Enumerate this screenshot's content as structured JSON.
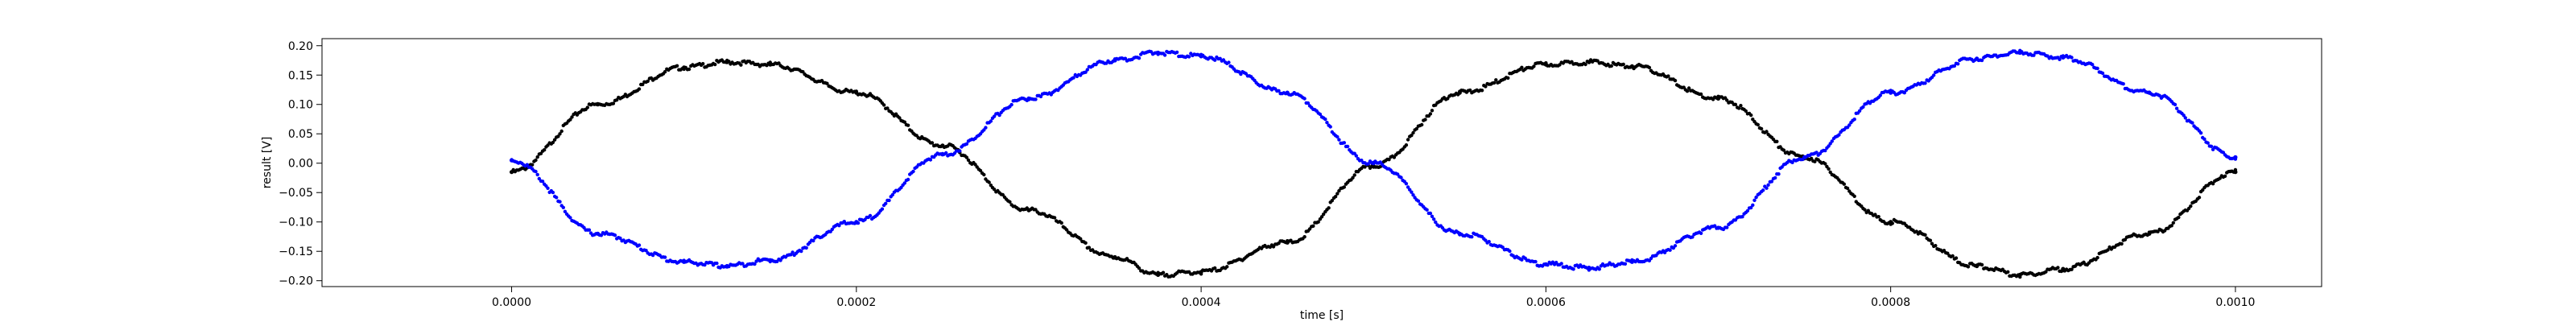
{
  "chart_data": {
    "type": "scatter",
    "title": "",
    "xlabel": "time [s]",
    "ylabel": "result [V]",
    "xlim": [
      -0.00011,
      0.00105
    ],
    "ylim": [
      -0.21,
      0.212
    ],
    "xticks": [
      0.0,
      0.0002,
      0.0004,
      0.0006,
      0.0008,
      0.001
    ],
    "xtick_labels": [
      "0.0000",
      "0.0002",
      "0.0004",
      "0.0006",
      "0.0008",
      "0.0010"
    ],
    "yticks": [
      -0.2,
      -0.15,
      -0.1,
      -0.05,
      0.0,
      0.05,
      0.1,
      0.15,
      0.2
    ],
    "ytick_labels": [
      "−0.20",
      "−0.15",
      "−0.10",
      "−0.05",
      "0.00",
      "0.05",
      "0.10",
      "0.15",
      "0.20"
    ],
    "grid": false,
    "legend": "none",
    "series": [
      {
        "color": "#000000",
        "marker": "dot",
        "x": [
          0.0,
          5e-05,
          0.0001,
          0.000125,
          0.00015,
          0.0002,
          0.00025,
          0.0003,
          0.00035,
          0.000375,
          0.0004,
          0.00045,
          0.0005,
          0.00055,
          0.0006,
          0.000625,
          0.00065,
          0.0007,
          0.00075,
          0.0008,
          0.00085,
          0.000875,
          0.0009,
          0.00095,
          0.001
        ],
        "y": [
          -0.015,
          0.1,
          0.163,
          0.172,
          0.168,
          0.12,
          0.03,
          -0.08,
          -0.16,
          -0.19,
          -0.185,
          -0.135,
          -0.005,
          0.12,
          0.168,
          0.172,
          0.165,
          0.11,
          0.01,
          -0.1,
          -0.175,
          -0.19,
          -0.18,
          -0.12,
          -0.015
        ]
      },
      {
        "color": "#0000ff",
        "marker": "dot",
        "x": [
          0.0,
          5e-05,
          0.0001,
          0.000125,
          0.00015,
          0.0002,
          0.00025,
          0.0003,
          0.00035,
          0.000375,
          0.0004,
          0.00045,
          0.0005,
          0.00055,
          0.0006,
          0.000625,
          0.00065,
          0.0007,
          0.00075,
          0.0008,
          0.00085,
          0.000875,
          0.0009,
          0.00095,
          0.001
        ],
        "y": [
          0.005,
          -0.12,
          -0.168,
          -0.175,
          -0.165,
          -0.1,
          0.015,
          0.11,
          0.175,
          0.188,
          0.182,
          0.12,
          0.0,
          -0.12,
          -0.172,
          -0.178,
          -0.168,
          -0.11,
          0.01,
          0.12,
          0.178,
          0.188,
          0.18,
          0.12,
          0.01
        ]
      }
    ]
  }
}
